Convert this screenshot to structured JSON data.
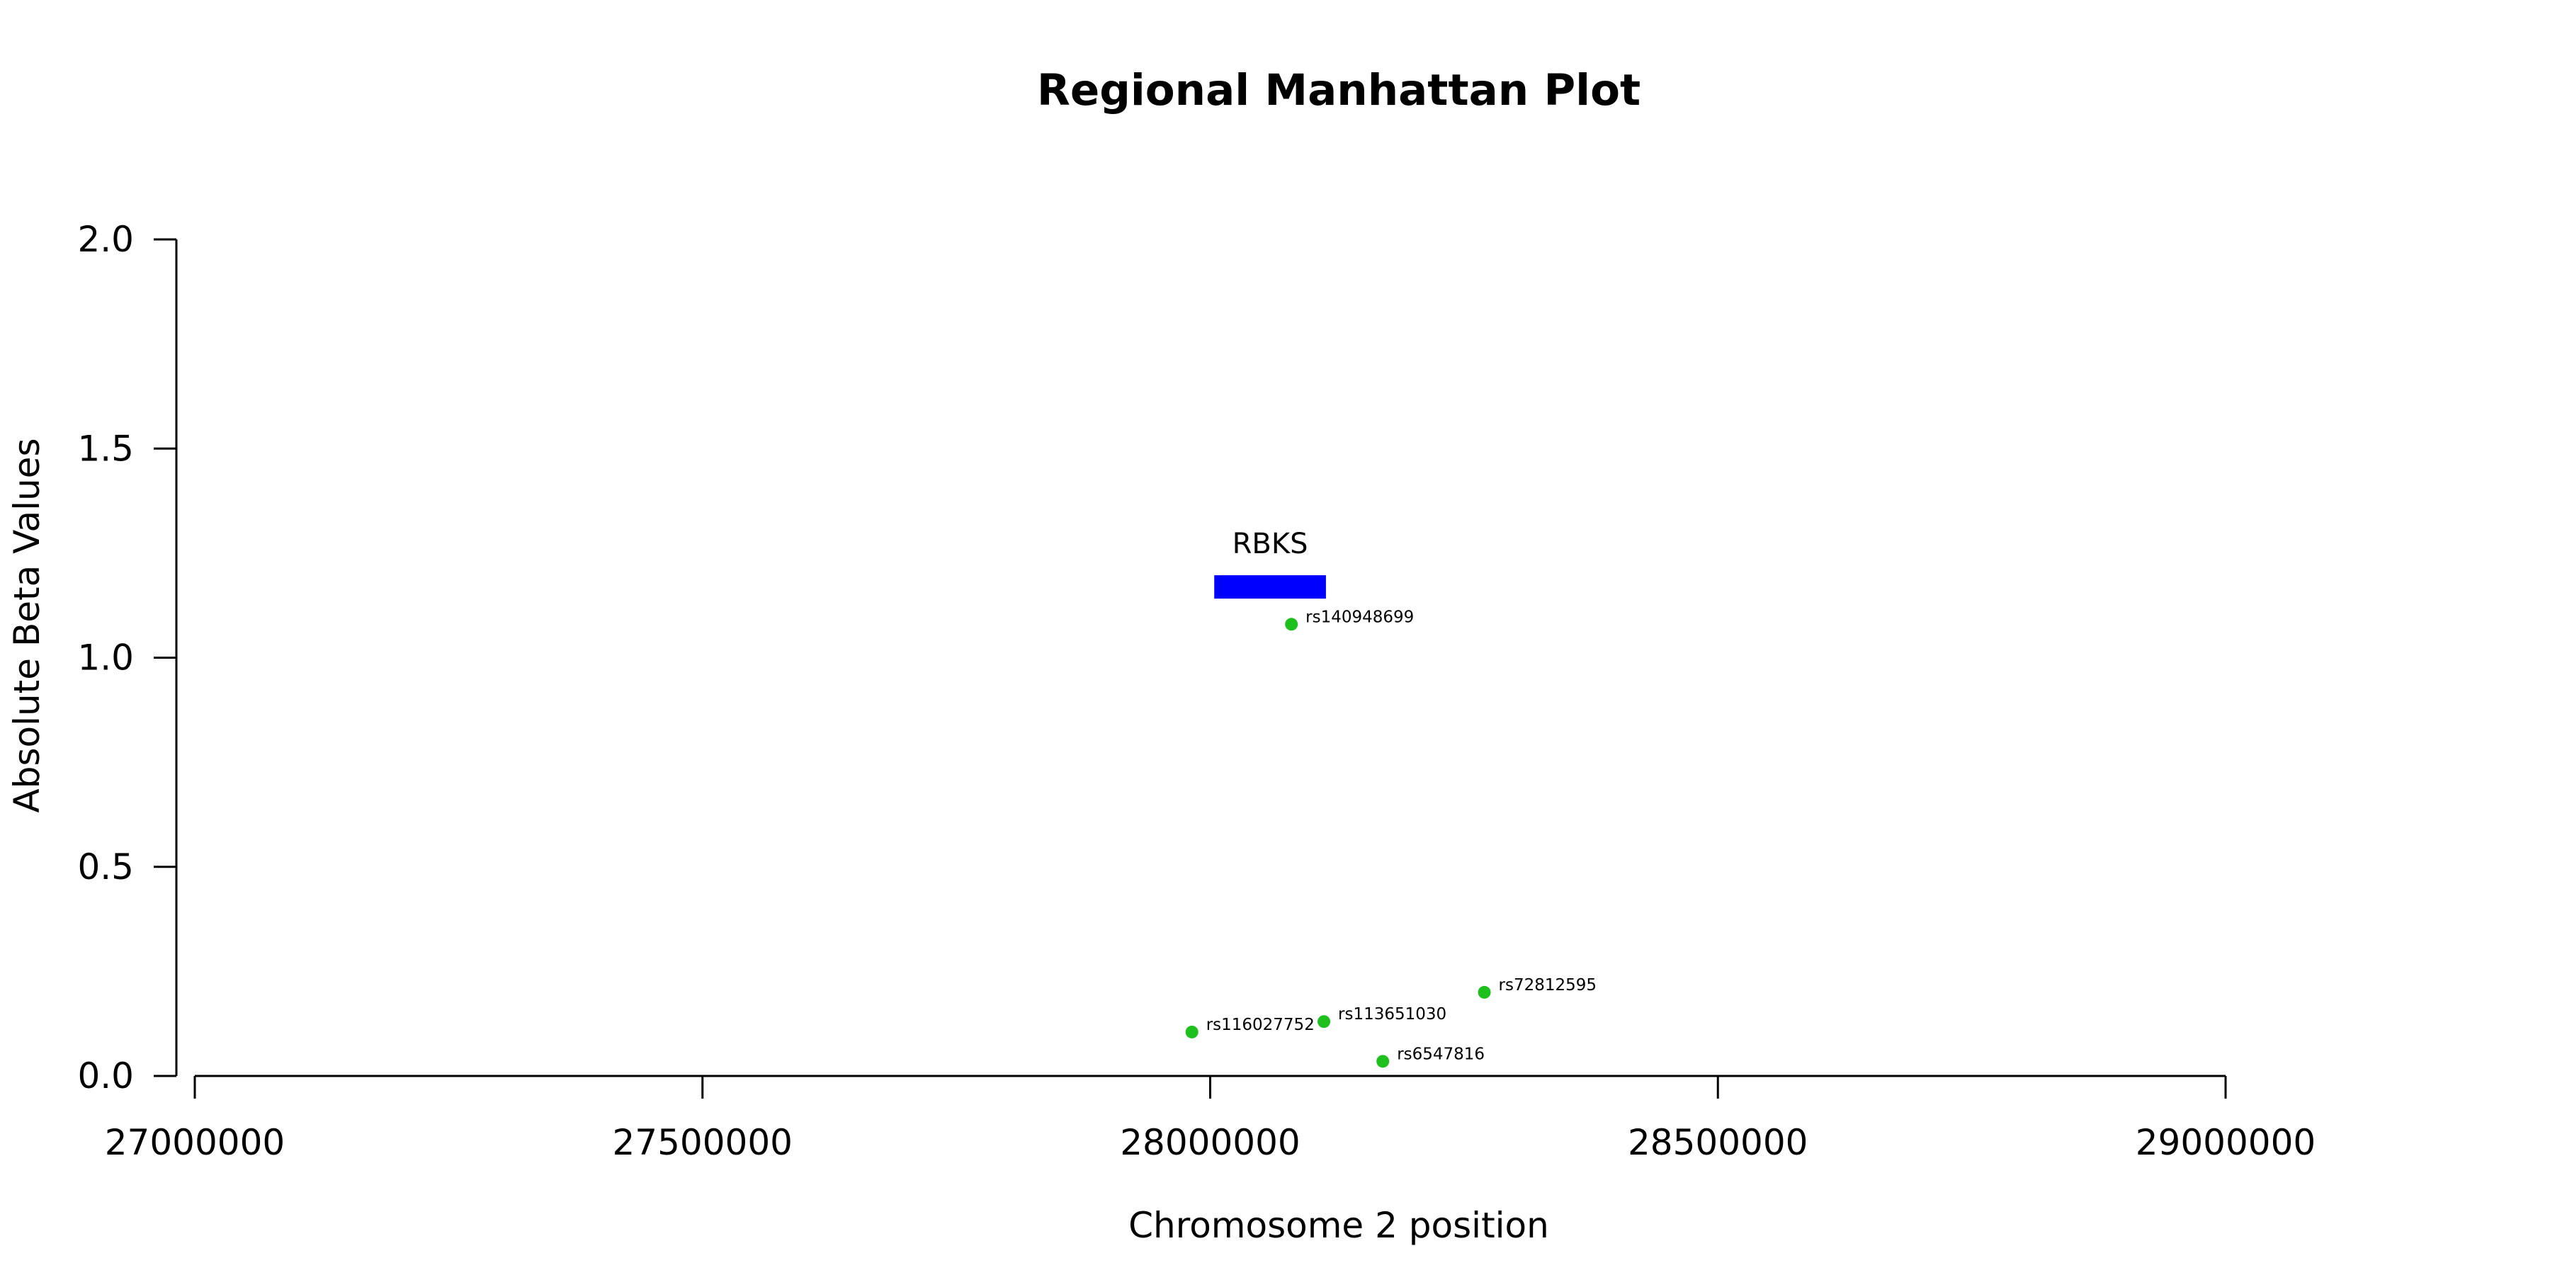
{
  "chart_data": {
    "type": "scatter",
    "title": "Regional Manhattan Plot",
    "xlabel": "Chromosome 2 position",
    "ylabel": "Absolute Beta Values",
    "xlim": [
      27000000,
      29000000
    ],
    "ylim": [
      0,
      2
    ],
    "x_ticks": [
      27000000,
      27500000,
      28000000,
      28500000,
      29000000
    ],
    "x_tick_labels": [
      "27000000",
      "27500000",
      "28000000",
      "28500000",
      "29000000"
    ],
    "y_ticks": [
      0,
      0.5,
      1,
      1.5,
      2
    ],
    "y_tick_labels": [
      "0.0",
      "0.5",
      "1.0",
      "1.5",
      "2.0"
    ],
    "grid": false,
    "point_color": "#1ec01e",
    "points": [
      {
        "label": "rs140948699",
        "x": 28080000,
        "y": 1.08
      },
      {
        "label": "rs72812595",
        "x": 28270000,
        "y": 0.2
      },
      {
        "label": "rs113651030",
        "x": 28112000,
        "y": 0.13
      },
      {
        "label": "rs116027752",
        "x": 27982000,
        "y": 0.105
      },
      {
        "label": "rs6547816",
        "x": 28170000,
        "y": 0.035
      }
    ],
    "genes": [
      {
        "name": "RBKS",
        "start": 28004000,
        "end": 28114000,
        "y": 1.17,
        "color": "#0000ff"
      }
    ]
  }
}
